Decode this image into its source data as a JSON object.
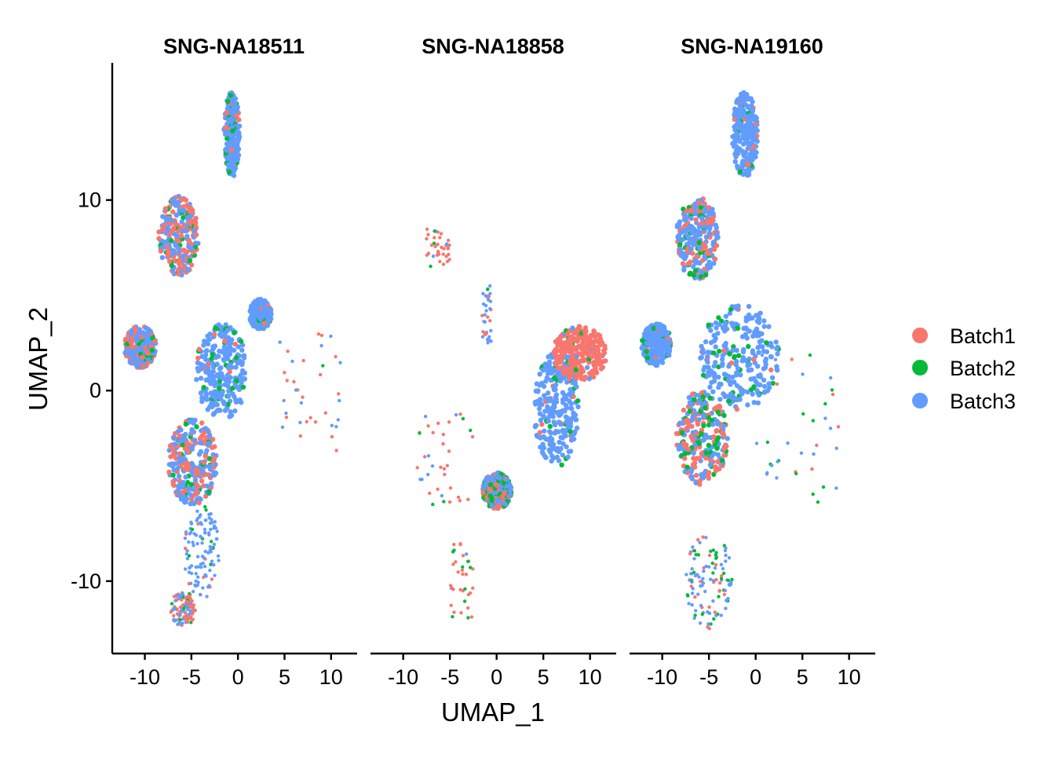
{
  "chart_data": {
    "type": "scatter",
    "xlabel": "UMAP_1",
    "ylabel": "UMAP_2",
    "xlim": [
      -13.5,
      12.8
    ],
    "ylim": [
      -13.8,
      17.2
    ],
    "xticks": [
      "-10",
      "-5",
      "0",
      "5",
      "10"
    ],
    "xtick_values": [
      -10,
      -5,
      0,
      5,
      10
    ],
    "yticks": [
      "-10",
      "0",
      "10"
    ],
    "ytick_values": [
      -10,
      0,
      10
    ],
    "grid": false,
    "legend": {
      "position": "right",
      "entries": [
        {
          "name": "Batch1",
          "color": "#F8766D"
        },
        {
          "name": "Batch2",
          "color": "#00BA38"
        },
        {
          "name": "Batch3",
          "color": "#619CFF"
        }
      ]
    },
    "panels": [
      {
        "title": "SNG-NA18511",
        "clusters": [
          {
            "name": "top-spike",
            "x": [
              -1.5,
              0.2
            ],
            "y": [
              11.2,
              15.7
            ],
            "density": "high",
            "mix": {
              "Batch1": 0.1,
              "Batch2": 0.1,
              "Batch3": 0.8
            }
          },
          {
            "name": "upper-left",
            "x": [
              -8.5,
              -4.2
            ],
            "y": [
              6.0,
              10.2
            ],
            "density": "high",
            "mix": {
              "Batch1": 0.45,
              "Batch2": 0.1,
              "Batch3": 0.45
            }
          },
          {
            "name": "left-blob",
            "x": [
              -12.2,
              -8.8
            ],
            "y": [
              1.2,
              3.4
            ],
            "density": "high",
            "mix": {
              "Batch1": 0.35,
              "Batch2": 0.1,
              "Batch3": 0.55
            }
          },
          {
            "name": "main-body",
            "x": [
              -7.5,
              -2.2
            ],
            "y": [
              -6.0,
              -1.5
            ],
            "density": "high",
            "mix": {
              "Batch1": 0.35,
              "Batch2": 0.1,
              "Batch3": 0.55
            }
          },
          {
            "name": "stream",
            "x": [
              -4.5,
              1.0
            ],
            "y": [
              -1.5,
              3.5
            ],
            "density": "high",
            "mix": {
              "Batch1": 0.05,
              "Batch2": 0.1,
              "Batch3": 0.85
            }
          },
          {
            "name": "right-blob",
            "x": [
              1.2,
              3.6
            ],
            "y": [
              3.2,
              4.8
            ],
            "density": "high",
            "mix": {
              "Batch1": 0.05,
              "Batch2": 0.05,
              "Batch3": 0.9
            }
          },
          {
            "name": "bottom-tail",
            "x": [
              -5.8,
              -2.0
            ],
            "y": [
              -11.0,
              -6.0
            ],
            "density": "medium",
            "mix": {
              "Batch1": 0.1,
              "Batch2": 0.1,
              "Batch3": 0.8
            }
          },
          {
            "name": "bottom-left",
            "x": [
              -7.3,
              -4.5
            ],
            "y": [
              -12.4,
              -10.5
            ],
            "density": "medium",
            "mix": {
              "Batch1": 0.6,
              "Batch2": 0.1,
              "Batch3": 0.3
            }
          },
          {
            "name": "sparse-right",
            "x": [
              4.5,
              11.0
            ],
            "y": [
              -3.5,
              3.0
            ],
            "density": "low",
            "mix": {
              "Batch1": 0.5,
              "Batch2": 0.1,
              "Batch3": 0.4
            }
          }
        ]
      },
      {
        "title": "SNG-NA18858",
        "clusters": [
          {
            "name": "big-blue",
            "x": [
              4.0,
              8.8
            ],
            "y": [
              -4.0,
              2.0
            ],
            "density": "high",
            "mix": {
              "Batch1": 0.02,
              "Batch2": 0.08,
              "Batch3": 0.9
            }
          },
          {
            "name": "salmon-blob",
            "x": [
              6.0,
              11.8
            ],
            "y": [
              0.5,
              3.4
            ],
            "density": "high",
            "mix": {
              "Batch1": 0.9,
              "Batch2": 0.05,
              "Batch3": 0.05
            }
          },
          {
            "name": "small-cluster",
            "x": [
              -1.5,
              1.6
            ],
            "y": [
              -6.2,
              -4.3
            ],
            "density": "high",
            "mix": {
              "Batch1": 0.3,
              "Batch2": 0.3,
              "Batch3": 0.4
            }
          },
          {
            "name": "scattered-left",
            "x": [
              -8.5,
              -2.5
            ],
            "y": [
              -6.0,
              -1.0
            ],
            "density": "low",
            "mix": {
              "Batch1": 0.6,
              "Batch2": 0.15,
              "Batch3": 0.25
            }
          },
          {
            "name": "upper-thin",
            "x": [
              -1.6,
              -0.6
            ],
            "y": [
              2.5,
              5.5
            ],
            "density": "low",
            "mix": {
              "Batch1": 0.3,
              "Batch2": 0.1,
              "Batch3": 0.6
            }
          },
          {
            "name": "top-sparse",
            "x": [
              -7.5,
              -5.0
            ],
            "y": [
              6.5,
              8.5
            ],
            "density": "low",
            "mix": {
              "Batch1": 0.8,
              "Batch2": 0.1,
              "Batch3": 0.1
            }
          },
          {
            "name": "bottom-sparse",
            "x": [
              -5.0,
              -2.5
            ],
            "y": [
              -12.0,
              -8.0
            ],
            "density": "low",
            "mix": {
              "Batch1": 0.7,
              "Batch2": 0.2,
              "Batch3": 0.1
            }
          }
        ]
      },
      {
        "title": "SNG-NA19160",
        "clusters": [
          {
            "name": "top-spike",
            "x": [
              -2.5,
              0.2
            ],
            "y": [
              11.2,
              15.7
            ],
            "density": "high",
            "mix": {
              "Batch1": 0.05,
              "Batch2": 0.05,
              "Batch3": 0.9
            }
          },
          {
            "name": "upper-left",
            "x": [
              -8.5,
              -4.0
            ],
            "y": [
              5.8,
              10.2
            ],
            "density": "high",
            "mix": {
              "Batch1": 0.3,
              "Batch2": 0.15,
              "Batch3": 0.55
            }
          },
          {
            "name": "left-blob",
            "x": [
              -12.2,
              -9.0
            ],
            "y": [
              1.3,
              3.5
            ],
            "density": "high",
            "mix": {
              "Batch1": 0.05,
              "Batch2": 0.15,
              "Batch3": 0.8
            }
          },
          {
            "name": "main-body",
            "x": [
              -8.5,
              -3.0
            ],
            "y": [
              -5.0,
              0.0
            ],
            "density": "high",
            "mix": {
              "Batch1": 0.35,
              "Batch2": 0.2,
              "Batch3": 0.45
            }
          },
          {
            "name": "stream",
            "x": [
              -6.0,
              2.5
            ],
            "y": [
              -1.0,
              4.5
            ],
            "density": "high",
            "mix": {
              "Batch1": 0.05,
              "Batch2": 0.1,
              "Batch3": 0.85
            }
          },
          {
            "name": "bottom",
            "x": [
              -7.5,
              -2.5
            ],
            "y": [
              -12.5,
              -7.5
            ],
            "density": "medium",
            "mix": {
              "Batch1": 0.2,
              "Batch2": 0.2,
              "Batch3": 0.6
            }
          },
          {
            "name": "sparse-right",
            "x": [
              0.0,
              9.0
            ],
            "y": [
              -6.0,
              2.0
            ],
            "density": "low",
            "mix": {
              "Batch1": 0.3,
              "Batch2": 0.2,
              "Batch3": 0.5
            }
          }
        ]
      }
    ]
  }
}
